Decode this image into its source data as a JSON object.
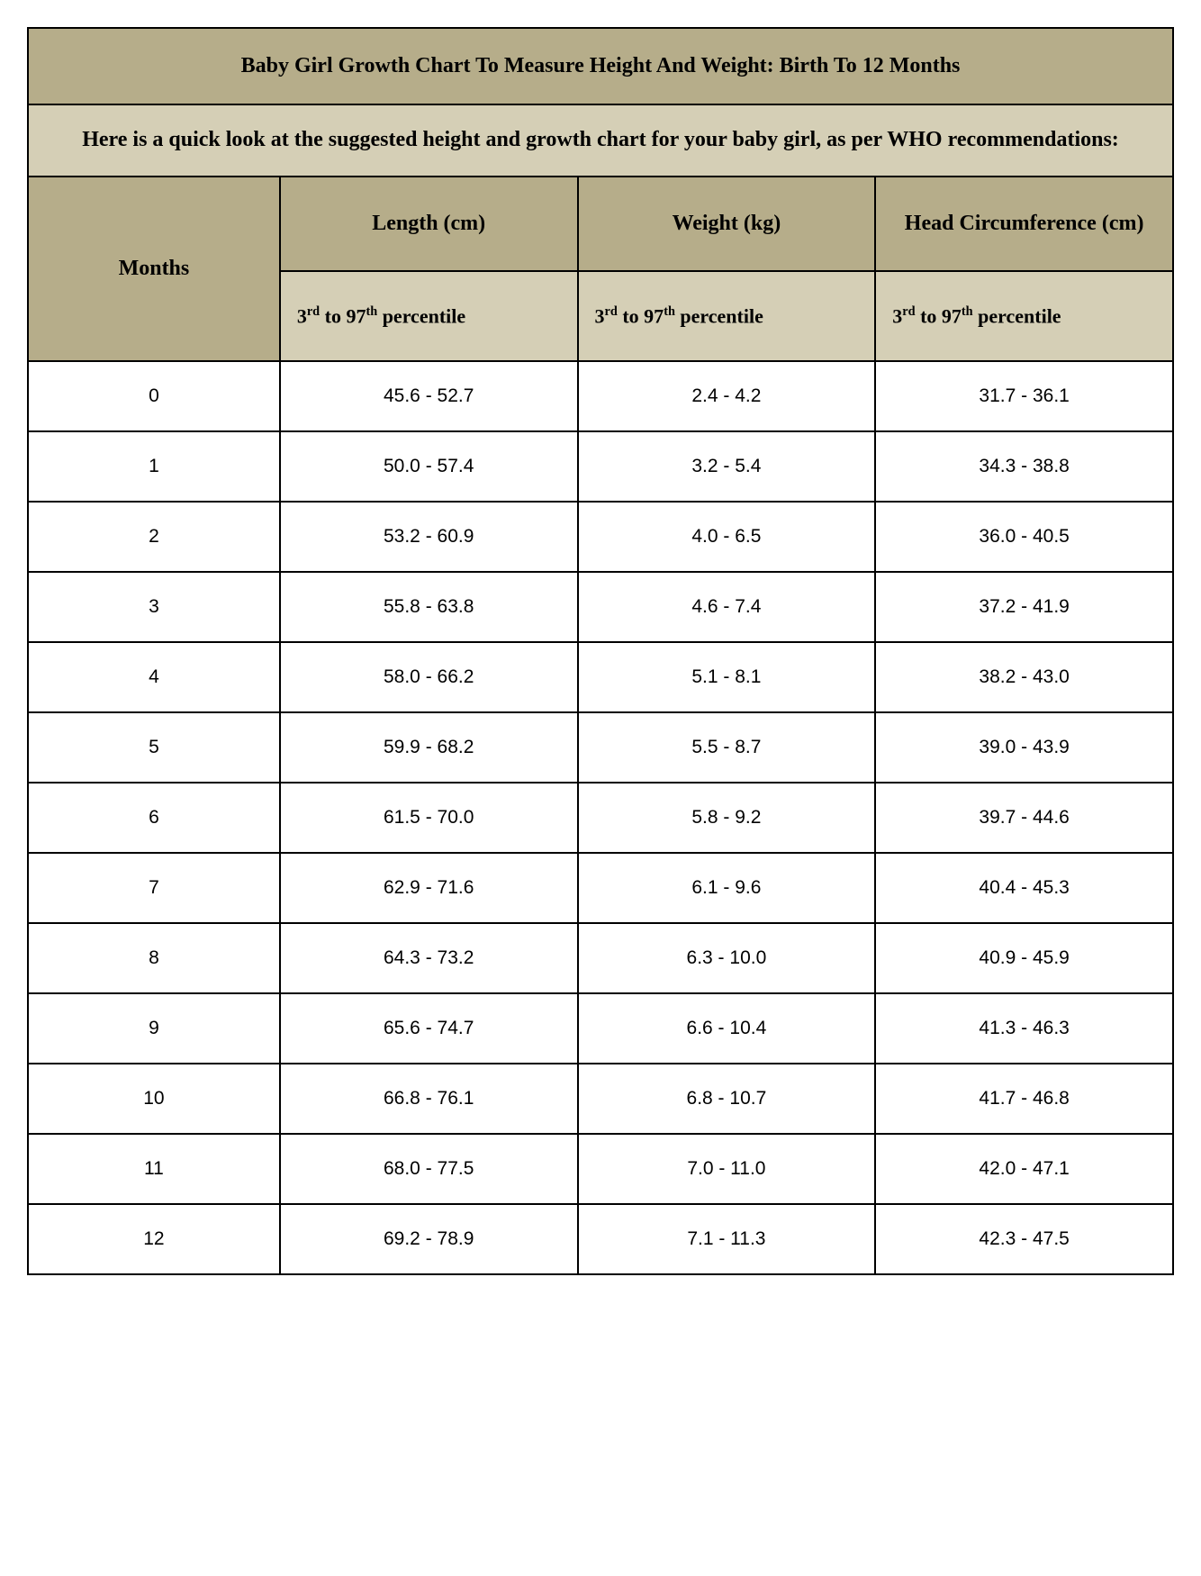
{
  "title": "Baby Girl Growth Chart To Measure Height And Weight: Birth To 12 Months",
  "subtitle": "Here is a quick look at the suggested height and growth chart for your baby girl, as per WHO recommendations:",
  "columns": {
    "months": "Months",
    "length": "Length (cm)",
    "weight": "Weight (kg)",
    "head": "Head Circumference (cm)"
  },
  "percentile_prefix": "3",
  "percentile_prefix_sup": "rd",
  "percentile_mid": " to 97",
  "percentile_mid_sup": "th",
  "percentile_suffix": " percentile",
  "styling": {
    "title_bg": "#b6ad8a",
    "subtitle_bg": "#d5cfb6",
    "header_bg": "#b6ad8a",
    "percentile_bg": "#d5cfb6",
    "data_bg": "#ffffff",
    "border_color": "#000000",
    "border_width": 2,
    "title_fontsize": 24,
    "header_fontsize": 24,
    "percentile_fontsize": 22,
    "data_fontsize": 21,
    "data_font_family": "Verdana",
    "header_font_family": "Times New Roman"
  },
  "rows": [
    {
      "month": "0",
      "length": "45.6 - 52.7",
      "weight": "2.4 - 4.2",
      "head": "31.7 - 36.1"
    },
    {
      "month": "1",
      "length": "50.0 - 57.4",
      "weight": "3.2 - 5.4",
      "head": "34.3 - 38.8"
    },
    {
      "month": "2",
      "length": "53.2 - 60.9",
      "weight": "4.0 - 6.5",
      "head": "36.0 - 40.5"
    },
    {
      "month": "3",
      "length": "55.8 - 63.8",
      "weight": "4.6 - 7.4",
      "head": "37.2 - 41.9"
    },
    {
      "month": "4",
      "length": "58.0 - 66.2",
      "weight": "5.1 - 8.1",
      "head": "38.2 - 43.0"
    },
    {
      "month": "5",
      "length": "59.9 - 68.2",
      "weight": "5.5 - 8.7",
      "head": "39.0 - 43.9"
    },
    {
      "month": "6",
      "length": "61.5 - 70.0",
      "weight": "5.8 - 9.2",
      "head": "39.7 - 44.6"
    },
    {
      "month": "7",
      "length": "62.9 - 71.6",
      "weight": "6.1 - 9.6",
      "head": "40.4 - 45.3"
    },
    {
      "month": "8",
      "length": "64.3 - 73.2",
      "weight": "6.3 - 10.0",
      "head": "40.9 - 45.9"
    },
    {
      "month": "9",
      "length": "65.6 - 74.7",
      "weight": "6.6 - 10.4",
      "head": "41.3 - 46.3"
    },
    {
      "month": "10",
      "length": "66.8 - 76.1",
      "weight": "6.8 - 10.7",
      "head": "41.7 - 46.8"
    },
    {
      "month": "11",
      "length": "68.0 - 77.5",
      "weight": "7.0 - 11.0",
      "head": "42.0 - 47.1"
    },
    {
      "month": "12",
      "length": "69.2 - 78.9",
      "weight": "7.1 - 11.3",
      "head": "42.3 - 47.5"
    }
  ]
}
